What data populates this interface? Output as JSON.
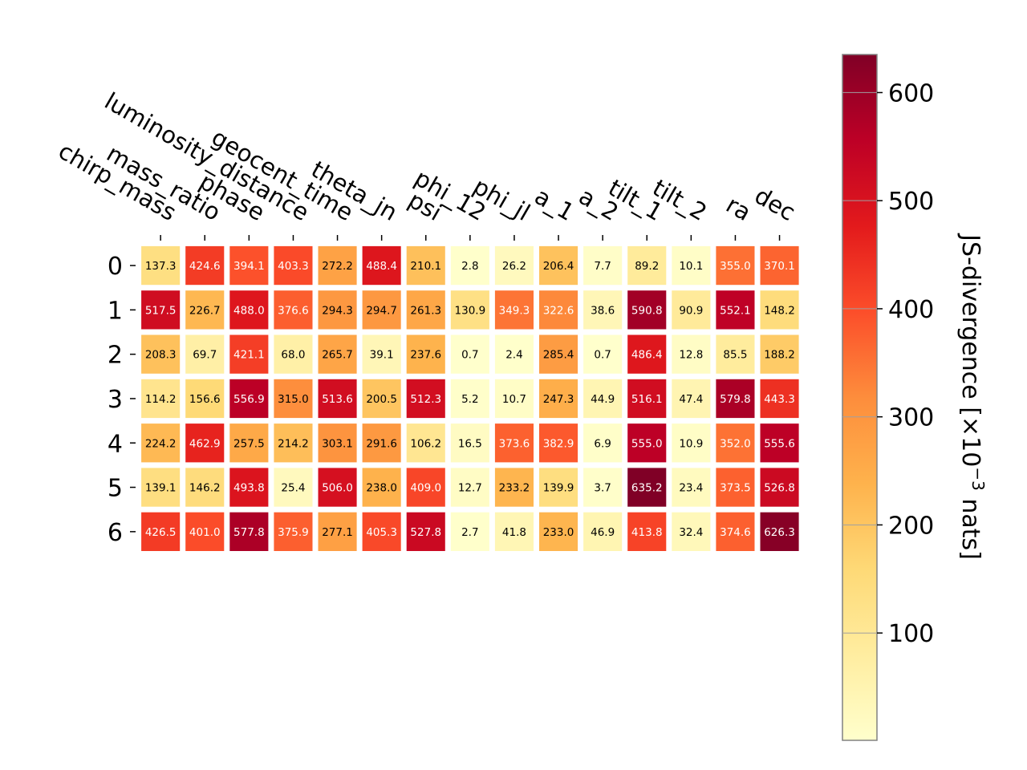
{
  "chart_data": {
    "type": "heatmap",
    "title": "",
    "columns": [
      "chirp_mass",
      "mass_ratio",
      "phase",
      "luminosity_distance",
      "geocent_time",
      "theta_jn",
      "psi",
      "phi_12",
      "phi_jl",
      "a_1",
      "a_2",
      "tilt_1",
      "tilt_2",
      "ra",
      "dec"
    ],
    "rows": [
      "0",
      "1",
      "2",
      "3",
      "4",
      "5",
      "6"
    ],
    "values": [
      [
        137.3,
        424.6,
        394.1,
        403.3,
        272.2,
        488.4,
        210.1,
        2.8,
        26.2,
        206.4,
        7.7,
        89.2,
        10.1,
        355.0,
        370.1
      ],
      [
        517.5,
        226.7,
        488.0,
        376.6,
        294.3,
        294.7,
        261.3,
        130.9,
        349.3,
        322.6,
        38.6,
        590.8,
        90.9,
        552.1,
        148.2
      ],
      [
        208.3,
        69.7,
        421.1,
        68.0,
        265.7,
        39.1,
        237.6,
        0.7,
        2.4,
        285.4,
        0.7,
        486.4,
        12.8,
        85.5,
        188.2
      ],
      [
        114.2,
        156.6,
        556.9,
        315.0,
        513.6,
        200.5,
        512.3,
        5.2,
        10.7,
        247.3,
        44.9,
        516.1,
        47.4,
        579.8,
        443.3
      ],
      [
        224.2,
        462.9,
        257.5,
        214.2,
        303.1,
        291.6,
        106.2,
        16.5,
        373.6,
        382.9,
        6.9,
        555.0,
        10.9,
        352.0,
        555.6
      ],
      [
        139.1,
        146.2,
        493.8,
        25.4,
        506.0,
        238.0,
        409.0,
        12.7,
        233.2,
        139.9,
        3.7,
        635.2,
        23.4,
        373.5,
        526.8
      ],
      [
        426.5,
        401.0,
        577.8,
        375.9,
        277.1,
        405.3,
        527.8,
        2.7,
        41.8,
        233.0,
        46.9,
        413.8,
        32.4,
        374.6,
        626.3
      ]
    ],
    "colorbar": {
      "label": "JS-divergence [×10",
      "label_exp": "−3",
      "label_suffix": " nats]",
      "ticks": [
        100,
        200,
        300,
        400,
        500,
        600
      ],
      "range": [
        0.7,
        635.2
      ],
      "colormap": "YlOrRd"
    },
    "grid": false
  }
}
